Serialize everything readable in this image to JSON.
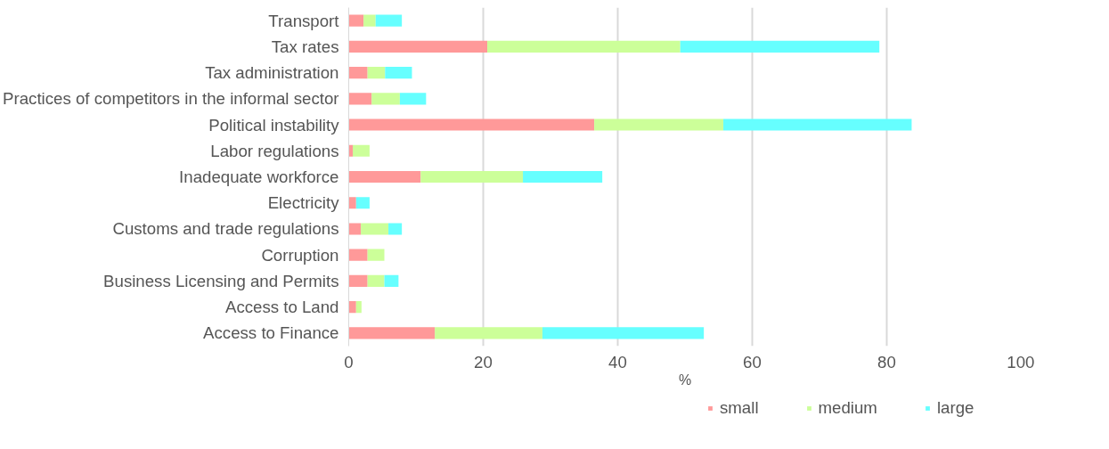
{
  "chart_data": {
    "type": "bar",
    "orientation": "horizontal",
    "stacked": true,
    "xlabel": "%",
    "categories": [
      "Transport",
      "Tax rates",
      "Tax administration",
      "Practices of competitors in the informal sector",
      "Political instability",
      "Labor regulations",
      "Inadequate workforce",
      "Electricity",
      "Customs and trade regulations",
      "Corruption",
      "Business Licensing and Permits",
      "Access to Land",
      "Access to Finance"
    ],
    "series": [
      {
        "name": "small",
        "color": "#ff9999",
        "values": [
          2.2,
          20.6,
          2.8,
          3.4,
          36.5,
          0.6,
          10.7,
          1.1,
          1.8,
          2.8,
          2.8,
          1.1,
          12.8
        ]
      },
      {
        "name": "medium",
        "color": "#ccff99",
        "values": [
          1.8,
          28.7,
          2.6,
          4.2,
          19.2,
          2.5,
          15.2,
          0,
          4.1,
          2.5,
          2.5,
          0.8,
          16.0
        ]
      },
      {
        "name": "large",
        "color": "#66ffff",
        "values": [
          3.9,
          29.6,
          4.0,
          3.9,
          28.0,
          0,
          11.8,
          2.0,
          2.0,
          0,
          2.1,
          0,
          24.0
        ]
      }
    ],
    "xlim": [
      0,
      100
    ],
    "xticks": [
      0,
      20,
      40,
      60,
      80,
      100
    ],
    "grid": "x",
    "legend": "bottom"
  }
}
